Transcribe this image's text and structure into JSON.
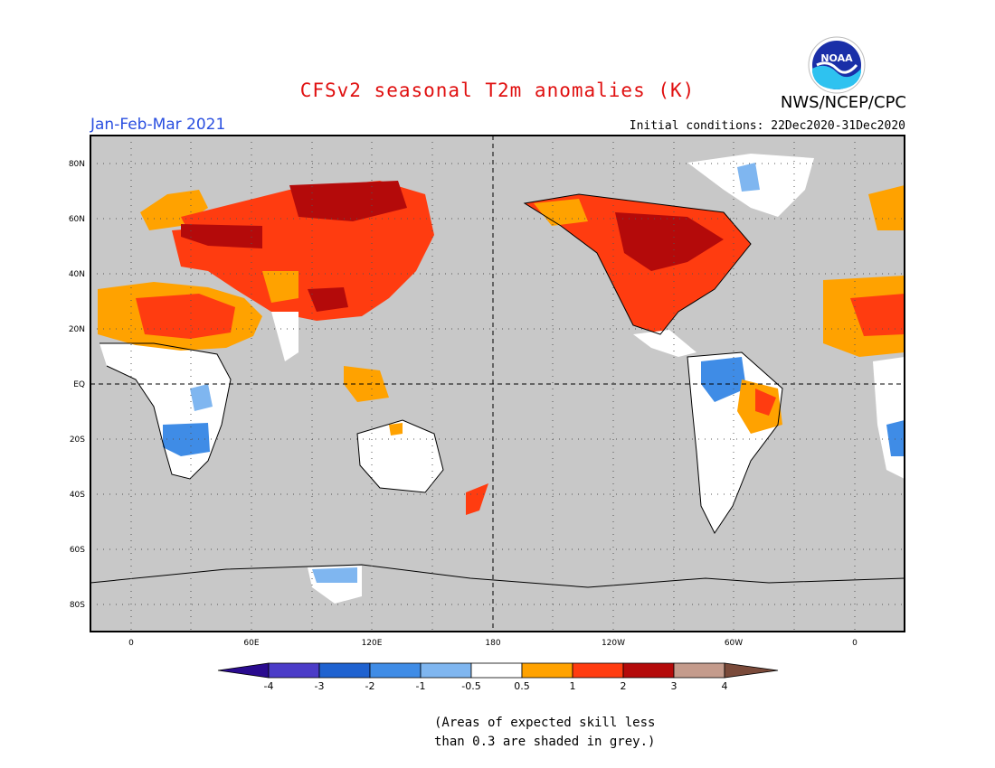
{
  "header": {
    "title": "CFSv2 seasonal T2m anomalies (K)",
    "org": "NWS/NCEP/CPC",
    "season": "Jan-Feb-Mar 2021",
    "init": "Initial conditions: 22Dec2020-31Dec2020",
    "logo_text": "NOAA"
  },
  "map": {
    "lat_labels": [
      "80N",
      "60N",
      "40N",
      "20N",
      "EQ",
      "20S",
      "40S",
      "60S",
      "80S"
    ],
    "lon_labels": [
      "0",
      "60E",
      "120E",
      "180",
      "120W",
      "60W",
      "0"
    ],
    "background_color": "#c8c8c8"
  },
  "legend": {
    "labels": [
      "-4",
      "-3",
      "-2",
      "-1",
      "-0.5",
      "0.5",
      "1",
      "2",
      "3",
      "4"
    ],
    "colors": [
      "#2a0b8f",
      "#4b3cc8",
      "#1f62d0",
      "#3f8ce6",
      "#7fb6f0",
      "#ffffff",
      "#ffa200",
      "#ff3c10",
      "#b40a0a",
      "#c49b8c",
      "#7a4a3a"
    ]
  },
  "note": {
    "line1": "(Areas of expected skill less",
    "line2": "than 0.3 are shaded in grey.)"
  }
}
